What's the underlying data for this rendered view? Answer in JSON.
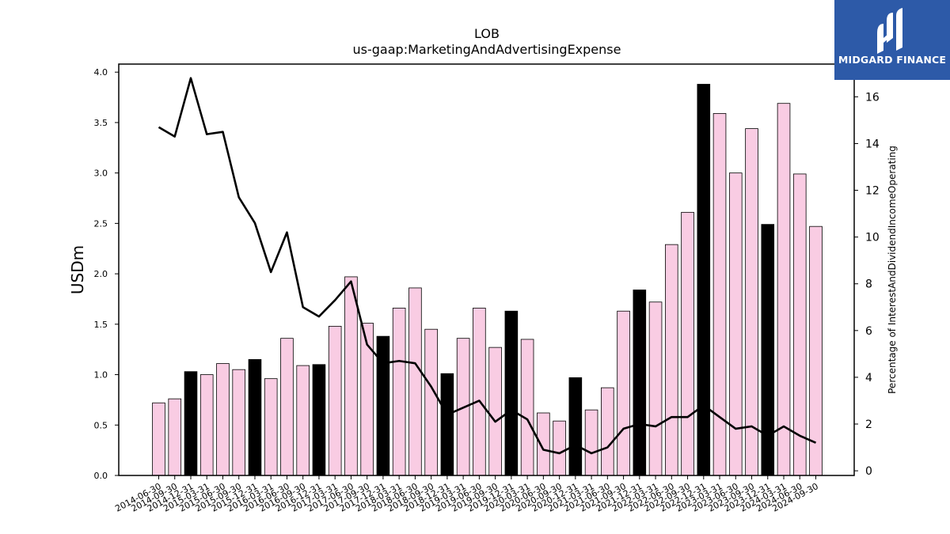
{
  "logo": {
    "text": "MIDGARD FINANCE"
  },
  "chart_data": {
    "type": "bar",
    "title": "LOB",
    "subtitle": "us-gaap:MarketingAndAdvertisingExpense",
    "ylabel": "USDm",
    "y2label": "Percentage of InterestAndDividendIncomeOperating",
    "ylim": [
      0,
      4.08
    ],
    "y2lim": [
      -0.2,
      17.4
    ],
    "yticks": [
      "0.0",
      "0.5",
      "1.0",
      "1.5",
      "2.0",
      "2.5",
      "3.0",
      "3.5",
      "4.0"
    ],
    "y2ticks": [
      "0",
      "2",
      "4",
      "6",
      "8",
      "10",
      "12",
      "14",
      "16"
    ],
    "categories": [
      "2014-06-30",
      "2014-09-30",
      "2014-12-31",
      "2015-03-31",
      "2015-06-30",
      "2015-09-30",
      "2015-12-31",
      "2016-03-31",
      "2016-06-30",
      "2016-09-30",
      "2016-12-31",
      "2017-03-31",
      "2017-06-30",
      "2017-09-30",
      "2017-12-31",
      "2018-03-31",
      "2018-06-30",
      "2018-09-30",
      "2018-12-31",
      "2019-03-31",
      "2019-06-30",
      "2019-09-30",
      "2019-12-31",
      "2020-03-31",
      "2020-06-30",
      "2020-09-30",
      "2020-12-31",
      "2021-03-31",
      "2021-06-30",
      "2021-09-30",
      "2021-12-31",
      "2022-03-31",
      "2022-06-30",
      "2022-09-30",
      "2022-12-31",
      "2023-03-31",
      "2023-06-30",
      "2023-09-30",
      "2023-12-31",
      "2024-03-31",
      "2024-06-30",
      "2024-09-30"
    ],
    "series": [
      {
        "type": "bar",
        "values": [
          0.72,
          0.76,
          1.03,
          1.0,
          1.11,
          1.05,
          1.15,
          0.96,
          1.36,
          1.09,
          1.1,
          1.48,
          1.97,
          1.51,
          1.38,
          1.66,
          1.86,
          1.45,
          1.01,
          1.36,
          1.66,
          1.27,
          1.63,
          1.35,
          0.62,
          0.54,
          0.97,
          0.65,
          0.87,
          1.63,
          1.84,
          1.72,
          2.29,
          2.61,
          3.88,
          3.59,
          3.0,
          3.44,
          2.49,
          3.69,
          2.99,
          2.47
        ],
        "highlight": [
          false,
          false,
          true,
          false,
          false,
          false,
          true,
          false,
          false,
          false,
          true,
          false,
          false,
          false,
          true,
          false,
          false,
          false,
          true,
          false,
          false,
          false,
          true,
          false,
          false,
          false,
          true,
          false,
          false,
          false,
          true,
          false,
          false,
          false,
          true,
          false,
          false,
          false,
          true,
          false,
          false,
          false
        ],
        "color": "#f9cce3",
        "highlight_color": "#000000"
      },
      {
        "type": "line",
        "axis": "right",
        "values": [
          14.7,
          14.3,
          16.8,
          14.4,
          14.5,
          11.7,
          10.6,
          8.5,
          10.2,
          7.0,
          6.6,
          7.3,
          8.1,
          5.4,
          4.6,
          4.7,
          4.6,
          3.6,
          2.4,
          2.7,
          3.0,
          2.1,
          2.6,
          2.2,
          0.9,
          0.75,
          1.1,
          0.75,
          1.0,
          1.8,
          2.0,
          1.9,
          2.3,
          2.3,
          2.8,
          2.3,
          1.8,
          1.9,
          1.5,
          1.9,
          1.5,
          1.2
        ],
        "color": "#000000"
      }
    ],
    "grid": false,
    "legend": "none"
  }
}
